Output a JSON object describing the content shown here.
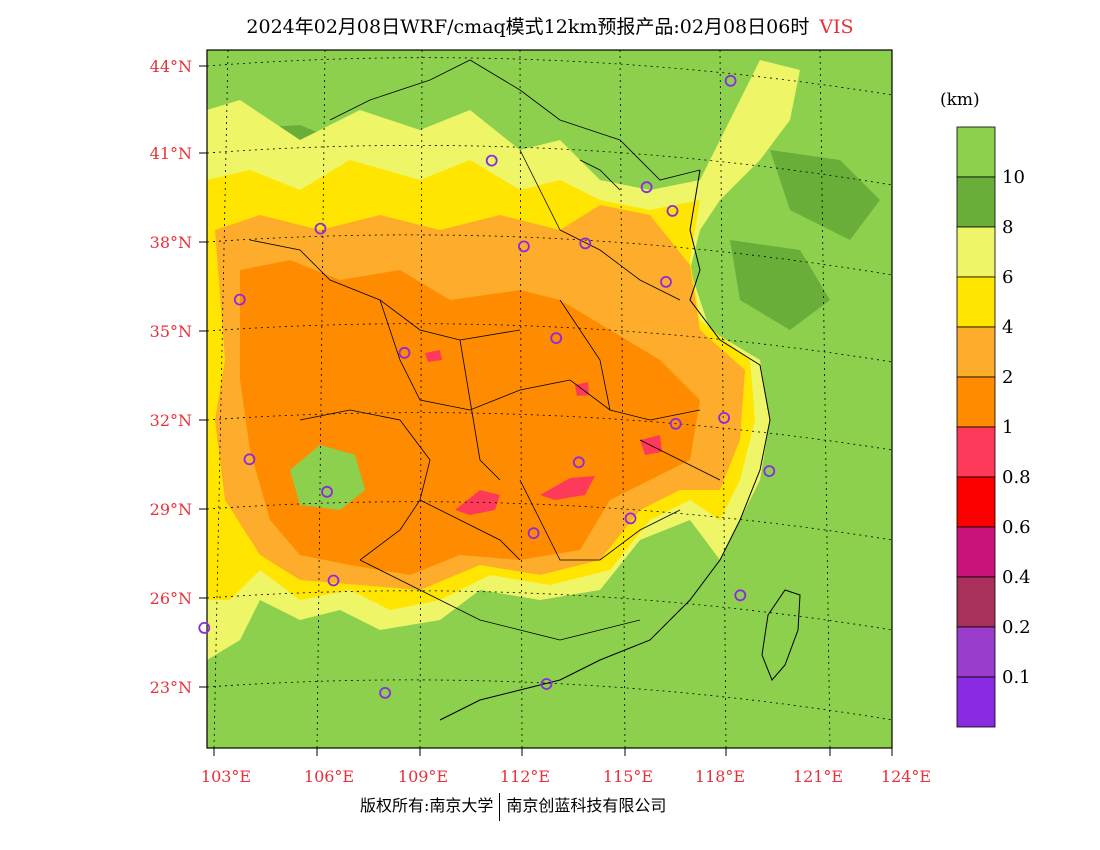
{
  "title": {
    "main": "2024年02月08日WRF/cmaq模式12km预报产品:02月08日06时",
    "variable": "VIS"
  },
  "credit": {
    "left": "版权所有:南京大学",
    "right": "南京创蓝科技有限公司"
  },
  "legend": {
    "unit": "(km)",
    "bins": [
      {
        "label": "",
        "color": "#8cd04e"
      },
      {
        "label": "10",
        "color": "#6aae3a"
      },
      {
        "label": "8",
        "color": "#eef566"
      },
      {
        "label": "6",
        "color": "#ffe500"
      },
      {
        "label": "4",
        "color": "#fdad2b"
      },
      {
        "label": "2",
        "color": "#ff8c00"
      },
      {
        "label": "1",
        "color": "#fd3a5a"
      },
      {
        "label": "0.8",
        "color": "#fc0000"
      },
      {
        "label": "0.6",
        "color": "#c8137a"
      },
      {
        "label": "0.4",
        "color": "#a8305a"
      },
      {
        "label": "0.2",
        "color": "#9a3ccc"
      },
      {
        "label": "0.1",
        "color": "#8a2be2"
      }
    ]
  },
  "axes": {
    "lat_labels": [
      "44°N",
      "41°N",
      "38°N",
      "35°N",
      "32°N",
      "29°N",
      "26°N",
      "23°N"
    ],
    "lon_labels": [
      "103°E",
      "106°E",
      "109°E",
      "112°E",
      "115°E",
      "118°E",
      "121°E",
      "124°E"
    ]
  },
  "stations": [
    {
      "lon": 119.0,
      "lat": 43.5
    },
    {
      "lon": 111.6,
      "lat": 40.8
    },
    {
      "lon": 116.4,
      "lat": 39.9
    },
    {
      "lon": 117.2,
      "lat": 39.1
    },
    {
      "lon": 106.3,
      "lat": 38.5
    },
    {
      "lon": 112.6,
      "lat": 37.9
    },
    {
      "lon": 114.5,
      "lat": 38.0
    },
    {
      "lon": 117.0,
      "lat": 36.7
    },
    {
      "lon": 103.8,
      "lat": 36.1
    },
    {
      "lon": 113.6,
      "lat": 34.8
    },
    {
      "lon": 108.9,
      "lat": 34.3
    },
    {
      "lon": 117.3,
      "lat": 31.9
    },
    {
      "lon": 118.8,
      "lat": 32.1
    },
    {
      "lon": 120.2,
      "lat": 30.3
    },
    {
      "lon": 114.3,
      "lat": 30.6
    },
    {
      "lon": 104.1,
      "lat": 30.7
    },
    {
      "lon": 106.5,
      "lat": 29.6
    },
    {
      "lon": 115.9,
      "lat": 28.7
    },
    {
      "lon": 112.9,
      "lat": 28.2
    },
    {
      "lon": 106.7,
      "lat": 26.6
    },
    {
      "lon": 119.3,
      "lat": 26.1
    },
    {
      "lon": 102.7,
      "lat": 25.0
    },
    {
      "lon": 113.3,
      "lat": 23.1
    },
    {
      "lon": 108.3,
      "lat": 22.8
    }
  ]
}
